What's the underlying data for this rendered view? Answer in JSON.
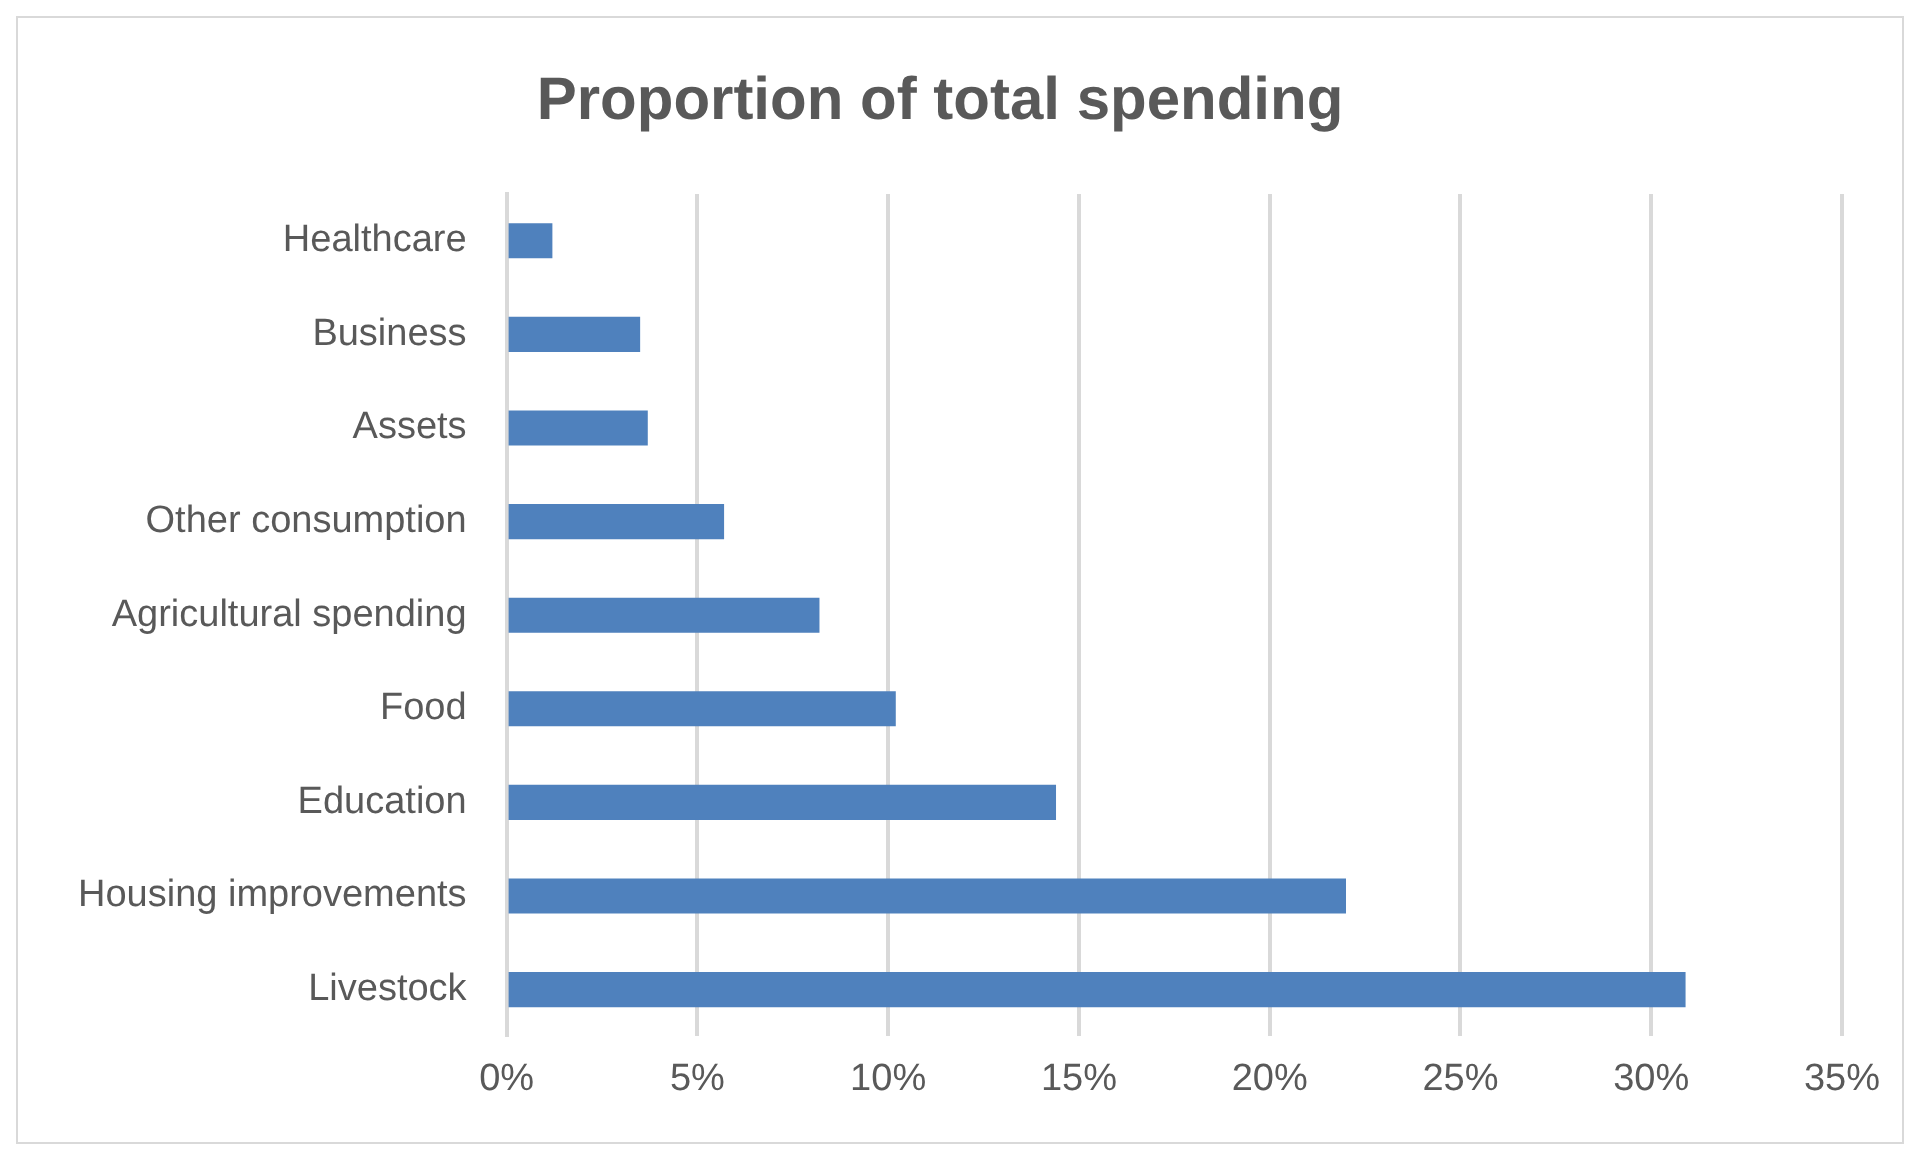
{
  "chart_data": {
    "type": "bar",
    "orientation": "horizontal",
    "title": "Proportion of total spending",
    "categories": [
      "Healthcare",
      "Business",
      "Assets",
      "Other consumption",
      "Agricultural spending",
      "Food",
      "Education",
      "Housing improvements",
      "Livestock"
    ],
    "values": [
      1.2,
      3.5,
      3.7,
      5.7,
      8.2,
      10.2,
      14.4,
      22.0,
      30.9
    ],
    "color": "#4f81bd",
    "xlim": [
      0,
      35
    ],
    "xticks": [
      {
        "value": 0,
        "label": "0%"
      },
      {
        "value": 5,
        "label": "5%"
      },
      {
        "value": 10,
        "label": "10%"
      },
      {
        "value": 15,
        "label": "15%"
      },
      {
        "value": 20,
        "label": "20%"
      },
      {
        "value": 25,
        "label": "25%"
      },
      {
        "value": 30,
        "label": "30%"
      },
      {
        "value": 35,
        "label": "35%"
      }
    ],
    "grid": "x"
  }
}
